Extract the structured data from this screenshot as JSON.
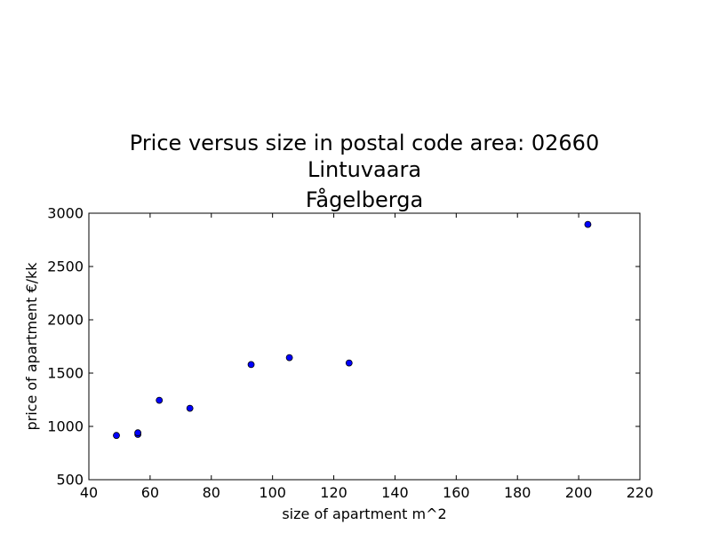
{
  "chart_data": {
    "type": "scatter",
    "title": [
      "Price versus size in postal code area: 02660",
      "Lintuvaara",
      "Fågelberga"
    ],
    "xlabel": "size of apartment m^2",
    "ylabel": "price of apartment €/kk",
    "xlim": [
      40,
      220
    ],
    "ylim": [
      500,
      3000
    ],
    "xticks": [
      40,
      60,
      80,
      100,
      120,
      140,
      160,
      180,
      200,
      220
    ],
    "yticks": [
      500,
      1000,
      1500,
      2000,
      2500,
      3000
    ],
    "grid": false,
    "marker_color": "#0000ff",
    "marker_edge_color": "#000000",
    "points": [
      {
        "x": 49,
        "y": 915
      },
      {
        "x": 56,
        "y": 925
      },
      {
        "x": 56,
        "y": 940
      },
      {
        "x": 63,
        "y": 1245
      },
      {
        "x": 73,
        "y": 1170
      },
      {
        "x": 93,
        "y": 1580
      },
      {
        "x": 105.5,
        "y": 1645
      },
      {
        "x": 125,
        "y": 1595
      },
      {
        "x": 203,
        "y": 2895
      }
    ]
  }
}
